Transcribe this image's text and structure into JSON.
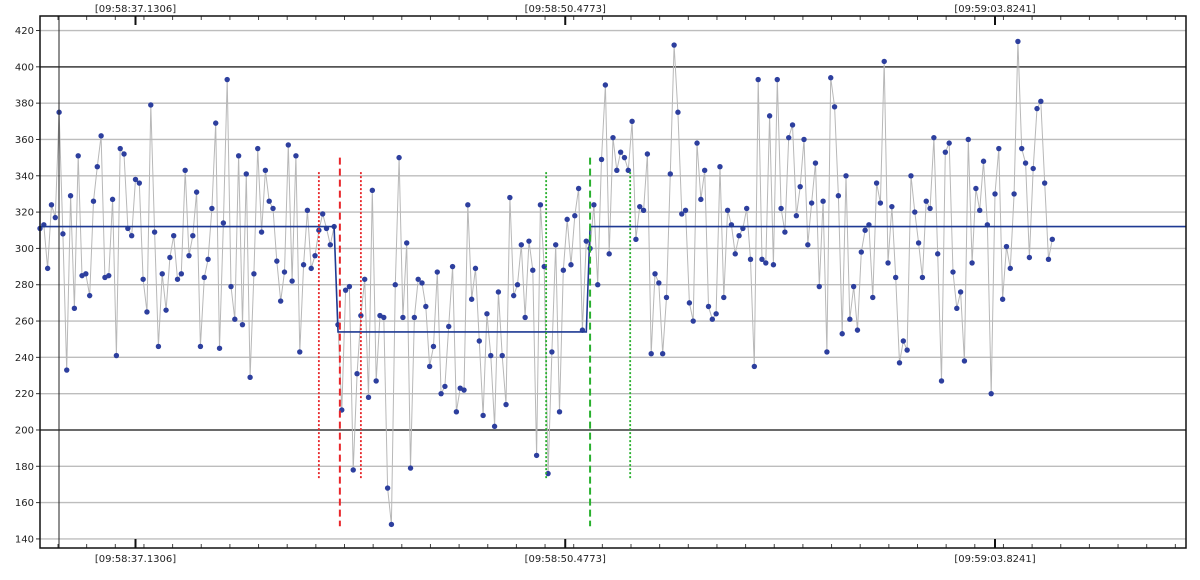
{
  "chart_data": {
    "type": "scatter",
    "x_unit": "sample index",
    "xlim": [
      0,
      300
    ],
    "ylim": [
      135,
      428
    ],
    "y_ticks": [
      140,
      160,
      180,
      200,
      220,
      240,
      260,
      280,
      300,
      320,
      340,
      360,
      380,
      400,
      420
    ],
    "y_major_lines": [
      200,
      400
    ],
    "time_labels": [
      {
        "x": 25.0,
        "text": "[09:58:37.1306]"
      },
      {
        "x": 137.5,
        "text": "[09:58:50.4773]"
      },
      {
        "x": 250.0,
        "text": "[09:59:03.8241]"
      }
    ],
    "grid": true,
    "series": [
      {
        "kind": "points-with-connecting-line",
        "marker_color": "#2d3f9e",
        "line_color": "#b8b8b8",
        "points": [
          [
            0,
            311
          ],
          [
            1,
            313
          ],
          [
            2,
            289
          ],
          [
            3,
            324
          ],
          [
            4,
            317
          ],
          [
            5,
            375
          ],
          [
            6,
            308
          ],
          [
            7,
            233
          ],
          [
            8,
            329
          ],
          [
            9,
            267
          ],
          [
            10,
            351
          ],
          [
            11,
            285
          ],
          [
            12,
            286
          ],
          [
            13,
            274
          ],
          [
            14,
            326
          ],
          [
            15,
            345
          ],
          [
            16,
            362
          ],
          [
            17,
            284
          ],
          [
            18,
            285
          ],
          [
            19,
            327
          ],
          [
            20,
            241
          ],
          [
            21,
            355
          ],
          [
            22,
            352
          ],
          [
            23,
            311
          ],
          [
            24,
            307
          ],
          [
            25,
            338
          ],
          [
            26,
            336
          ],
          [
            27,
            283
          ],
          [
            28,
            265
          ],
          [
            29,
            379
          ],
          [
            30,
            309
          ],
          [
            31,
            246
          ],
          [
            32,
            286
          ],
          [
            33,
            266
          ],
          [
            34,
            295
          ],
          [
            35,
            307
          ],
          [
            36,
            283
          ],
          [
            37,
            286
          ],
          [
            38,
            343
          ],
          [
            39,
            296
          ],
          [
            40,
            307
          ],
          [
            41,
            331
          ],
          [
            42,
            246
          ],
          [
            43,
            284
          ],
          [
            44,
            294
          ],
          [
            45,
            322
          ],
          [
            46,
            369
          ],
          [
            47,
            245
          ],
          [
            48,
            314
          ],
          [
            49,
            393
          ],
          [
            50,
            279
          ],
          [
            51,
            261
          ],
          [
            52,
            351
          ],
          [
            53,
            258
          ],
          [
            54,
            341
          ],
          [
            55,
            229
          ],
          [
            56,
            286
          ],
          [
            57,
            355
          ],
          [
            58,
            309
          ],
          [
            59,
            343
          ],
          [
            60,
            326
          ],
          [
            61,
            322
          ],
          [
            62,
            293
          ],
          [
            63,
            271
          ],
          [
            64,
            287
          ],
          [
            65,
            357
          ],
          [
            66,
            282
          ],
          [
            67,
            351
          ],
          [
            68,
            243
          ],
          [
            69,
            291
          ],
          [
            70,
            321
          ],
          [
            71,
            289
          ],
          [
            72,
            296
          ],
          [
            73,
            310
          ],
          [
            74,
            319
          ],
          [
            75,
            311
          ],
          [
            76,
            302
          ],
          [
            77,
            312
          ],
          [
            78,
            258
          ],
          [
            79,
            211
          ],
          [
            80,
            277
          ],
          [
            81,
            279
          ],
          [
            82,
            178
          ],
          [
            83,
            231
          ],
          [
            84,
            263
          ],
          [
            85,
            283
          ],
          [
            86,
            218
          ],
          [
            87,
            332
          ],
          [
            88,
            227
          ],
          [
            89,
            263
          ],
          [
            90,
            262
          ],
          [
            91,
            168
          ],
          [
            92,
            148
          ],
          [
            93,
            280
          ],
          [
            94,
            350
          ],
          [
            95,
            262
          ],
          [
            96,
            303
          ],
          [
            97,
            179
          ],
          [
            98,
            262
          ],
          [
            99,
            283
          ],
          [
            100,
            281
          ],
          [
            101,
            268
          ],
          [
            102,
            235
          ],
          [
            103,
            246
          ],
          [
            104,
            287
          ],
          [
            105,
            220
          ],
          [
            106,
            224
          ],
          [
            107,
            257
          ],
          [
            108,
            290
          ],
          [
            109,
            210
          ],
          [
            110,
            223
          ],
          [
            111,
            222
          ],
          [
            112,
            324
          ],
          [
            113,
            272
          ],
          [
            114,
            289
          ],
          [
            115,
            249
          ],
          [
            116,
            208
          ],
          [
            117,
            264
          ],
          [
            118,
            241
          ],
          [
            119,
            202
          ],
          [
            120,
            276
          ],
          [
            121,
            241
          ],
          [
            122,
            214
          ],
          [
            123,
            328
          ],
          [
            124,
            274
          ],
          [
            125,
            280
          ],
          [
            126,
            302
          ],
          [
            127,
            262
          ],
          [
            128,
            304
          ],
          [
            129,
            288
          ],
          [
            130,
            186
          ],
          [
            131,
            324
          ],
          [
            132,
            290
          ],
          [
            133,
            176
          ],
          [
            134,
            243
          ],
          [
            135,
            302
          ],
          [
            136,
            210
          ],
          [
            137,
            288
          ],
          [
            138,
            316
          ],
          [
            139,
            291
          ],
          [
            140,
            318
          ],
          [
            141,
            333
          ],
          [
            142,
            255
          ],
          [
            143,
            304
          ],
          [
            144,
            300
          ],
          [
            145,
            324
          ],
          [
            146,
            280
          ],
          [
            147,
            349
          ],
          [
            148,
            390
          ],
          [
            149,
            297
          ],
          [
            150,
            361
          ],
          [
            151,
            343
          ],
          [
            152,
            353
          ],
          [
            153,
            350
          ],
          [
            154,
            343
          ],
          [
            155,
            370
          ],
          [
            156,
            305
          ],
          [
            157,
            323
          ],
          [
            158,
            321
          ],
          [
            159,
            352
          ],
          [
            160,
            242
          ],
          [
            161,
            286
          ],
          [
            162,
            281
          ],
          [
            163,
            242
          ],
          [
            164,
            273
          ],
          [
            165,
            341
          ],
          [
            166,
            412
          ],
          [
            167,
            375
          ],
          [
            168,
            319
          ],
          [
            169,
            321
          ],
          [
            170,
            270
          ],
          [
            171,
            260
          ],
          [
            172,
            358
          ],
          [
            173,
            327
          ],
          [
            174,
            343
          ],
          [
            175,
            268
          ],
          [
            176,
            261
          ],
          [
            177,
            264
          ],
          [
            178,
            345
          ],
          [
            179,
            273
          ],
          [
            180,
            321
          ],
          [
            181,
            313
          ],
          [
            182,
            297
          ],
          [
            183,
            307
          ],
          [
            184,
            311
          ],
          [
            185,
            322
          ],
          [
            186,
            294
          ],
          [
            187,
            235
          ],
          [
            188,
            393
          ],
          [
            189,
            294
          ],
          [
            190,
            292
          ],
          [
            191,
            373
          ],
          [
            192,
            291
          ],
          [
            193,
            393
          ],
          [
            194,
            322
          ],
          [
            195,
            309
          ],
          [
            196,
            361
          ],
          [
            197,
            368
          ],
          [
            198,
            318
          ],
          [
            199,
            334
          ],
          [
            200,
            360
          ],
          [
            201,
            302
          ],
          [
            202,
            325
          ],
          [
            203,
            347
          ],
          [
            204,
            279
          ],
          [
            205,
            326
          ],
          [
            206,
            243
          ],
          [
            207,
            394
          ],
          [
            208,
            378
          ],
          [
            209,
            329
          ],
          [
            210,
            253
          ],
          [
            211,
            340
          ],
          [
            212,
            261
          ],
          [
            213,
            279
          ],
          [
            214,
            255
          ],
          [
            215,
            298
          ],
          [
            216,
            310
          ],
          [
            217,
            313
          ],
          [
            218,
            273
          ],
          [
            219,
            336
          ],
          [
            220,
            325
          ],
          [
            221,
            403
          ],
          [
            222,
            292
          ],
          [
            223,
            323
          ],
          [
            224,
            284
          ],
          [
            225,
            237
          ],
          [
            226,
            249
          ],
          [
            227,
            244
          ],
          [
            228,
            340
          ],
          [
            229,
            320
          ],
          [
            230,
            303
          ],
          [
            231,
            284
          ],
          [
            232,
            326
          ],
          [
            233,
            322
          ],
          [
            234,
            361
          ],
          [
            235,
            297
          ],
          [
            236,
            227
          ],
          [
            237,
            353
          ],
          [
            238,
            358
          ],
          [
            239,
            287
          ],
          [
            240,
            267
          ],
          [
            241,
            276
          ],
          [
            242,
            238
          ],
          [
            243,
            360
          ],
          [
            244,
            292
          ],
          [
            245,
            333
          ],
          [
            246,
            321
          ],
          [
            247,
            348
          ],
          [
            248,
            313
          ],
          [
            249,
            220
          ],
          [
            250,
            330
          ],
          [
            251,
            355
          ],
          [
            252,
            272
          ],
          [
            253,
            301
          ],
          [
            254,
            289
          ],
          [
            255,
            330
          ],
          [
            256,
            414
          ],
          [
            257,
            355
          ],
          [
            258,
            347
          ],
          [
            259,
            295
          ],
          [
            260,
            344
          ],
          [
            261,
            377
          ],
          [
            262,
            381
          ],
          [
            263,
            336
          ],
          [
            264,
            294
          ],
          [
            265,
            305
          ]
        ]
      },
      {
        "kind": "step-line",
        "color": "#1f3a93",
        "points": [
          [
            0,
            312
          ],
          [
            77,
            312
          ],
          [
            78,
            254
          ],
          [
            143,
            254
          ],
          [
            144,
            312
          ],
          [
            300,
            312
          ]
        ]
      }
    ],
    "markers": [
      {
        "x": 78.5,
        "style": "dashed",
        "color": "#e8262a",
        "y_range": [
          147,
          350
        ]
      },
      {
        "x": 73.0,
        "style": "dotted",
        "color": "#e8262a",
        "y_range": [
          173,
          342
        ]
      },
      {
        "x": 84.0,
        "style": "dotted",
        "color": "#e8262a",
        "y_range": [
          173,
          342
        ]
      },
      {
        "x": 144.0,
        "style": "dashed",
        "color": "#29b02e",
        "y_range": [
          147,
          350
        ]
      },
      {
        "x": 132.5,
        "style": "dotted",
        "color": "#29b02e",
        "y_range": [
          173,
          342
        ]
      },
      {
        "x": 154.5,
        "style": "dotted",
        "color": "#29b02e",
        "y_range": [
          173,
          342
        ]
      }
    ]
  }
}
